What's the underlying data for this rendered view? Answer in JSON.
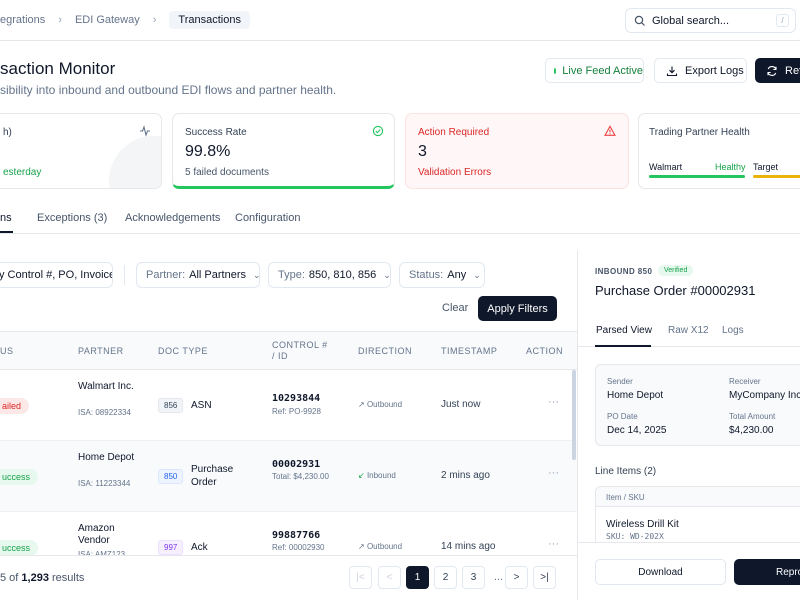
{
  "breadcrumb": {
    "items": [
      "egrations",
      "EDI Gateway",
      "Transactions"
    ]
  },
  "search": {
    "placeholder": "Global search...",
    "shortcut": "/"
  },
  "header": {
    "title": "saction Monitor",
    "subtitle": "sibility into inbound and outbound EDI flows and partner health.",
    "live_label": "Live Feed Active",
    "export_label": "Export Logs",
    "refresh_label": "Refr"
  },
  "stats": {
    "card1": {
      "label": "h)",
      "note": "esterday"
    },
    "card2": {
      "label": "Success Rate",
      "value": "99.8%",
      "note": "5 failed documents"
    },
    "card3": {
      "label": "Action Required",
      "value": "3",
      "note": "Validation Errors"
    },
    "card4": {
      "label": "Trading Partner Health",
      "partner1": "Walmart",
      "status1": "Healthy",
      "partner2": "Target",
      "health1": 1.0,
      "health2": 0.75
    }
  },
  "tabs": [
    "ns",
    "Exceptions (3)",
    "Acknowledgements",
    "Configuration"
  ],
  "filters": {
    "search_value": "y Control #, PO, Invoice",
    "partner_label": "Partner:",
    "partner_value": "All Partners",
    "type_label": "Type:",
    "type_value": "850, 810, 856",
    "status_label": "Status:",
    "status_value": "Any",
    "clear_label": "Clear",
    "apply_label": "Apply Filters"
  },
  "table": {
    "headers": {
      "status": "US",
      "partner": "PARTNER",
      "doctype": "DOC TYPE",
      "control": "CONTROL # / ID",
      "direction": "DIRECTION",
      "timestamp": "TIMESTAMP",
      "action": "ACTION"
    },
    "rows": [
      {
        "status": "ailed",
        "partner": "Walmart Inc.",
        "isa": "ISA: 08922334",
        "code": "856",
        "docname": "ASN",
        "control": "10293844",
        "ref": "Ref: PO-9928",
        "direction": "Outbound",
        "timestamp": "Just now",
        "action": "···"
      },
      {
        "status": "uccess",
        "partner": "Home Depot",
        "isa": "ISA: 11223344",
        "code": "850",
        "docname": "Purchase Order",
        "control": "00002931",
        "ref": "Total: $4,230.00",
        "direction": "Inbound",
        "timestamp": "2 mins ago",
        "action": "···"
      },
      {
        "status": "uccess",
        "partner": "Amazon Vendor",
        "isa": "ISA: AMZ123",
        "code": "997",
        "docname": "Ack",
        "control": "99887766",
        "ref": "Ref: 00002930",
        "direction": "Outbound",
        "timestamp": "14 mins ago",
        "action": "···"
      }
    ]
  },
  "pagination": {
    "shown": "5 of ",
    "total": "1,293",
    "suffix": " results",
    "first": "|<",
    "prev": "<",
    "pages": [
      "1",
      "2",
      "3"
    ],
    "ellipsis": "...",
    "next": ">",
    "last": ">|"
  },
  "panel": {
    "kicker": "INBOUND 850",
    "badge": "Verified",
    "title": "Purchase Order #00002931",
    "tabs": [
      "Parsed View",
      "Raw X12",
      "Logs"
    ],
    "sender_label": "Sender",
    "sender": "Home Depot",
    "receiver_label": "Receiver",
    "receiver": "MyCompany Inc",
    "po_date_label": "PO Date",
    "po_date": "Dec 14, 2025",
    "total_label": "Total Amount",
    "total": "$4,230.00",
    "line_items_title": "Line Items (2)",
    "li_header": "Item / SKU",
    "li_name": "Wireless Drill Kit",
    "li_sku": "SKU: WD-202X",
    "download_label": "Download",
    "repro_label": "Repro"
  }
}
